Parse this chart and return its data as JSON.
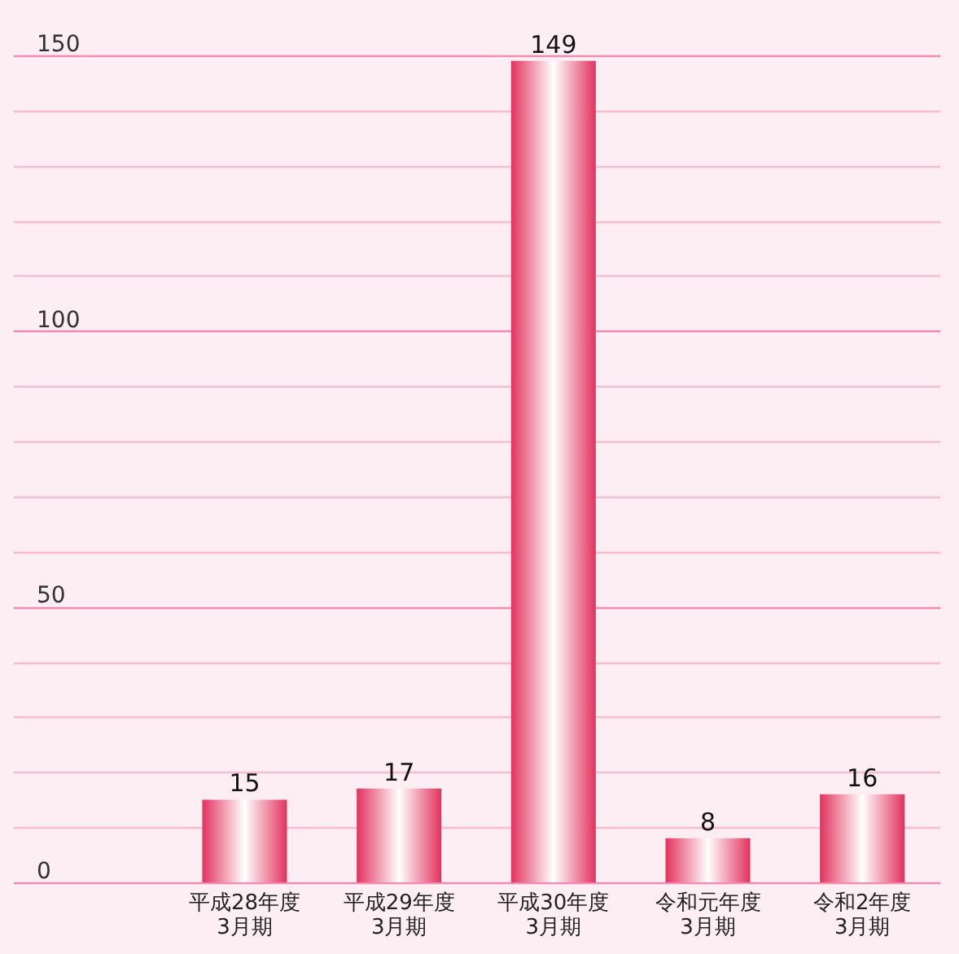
{
  "chart_data": {
    "type": "bar",
    "categories": [
      "平成28年度\n3月期",
      "平成29年度\n3月期",
      "平成30年度\n3月期",
      "令和元年度\n3月期",
      "令和2年度\n3月期"
    ],
    "values": [
      15,
      17,
      149,
      8,
      16
    ],
    "color": "#e2325e",
    "ylim": [
      0,
      150
    ],
    "yticks": [
      0,
      {
        "value": 10,
        "label": null
      },
      {
        "value": 20,
        "label": null
      },
      {
        "value": 30,
        "label": null
      },
      {
        "value": 40,
        "label": null
      },
      50,
      {
        "value": 60,
        "label": null
      },
      {
        "value": 70,
        "label": null
      },
      {
        "value": 80,
        "label": null
      },
      {
        "value": 90,
        "label": null
      },
      100,
      {
        "value": 110,
        "label": null
      },
      {
        "value": 120,
        "label": null
      },
      {
        "value": 130,
        "label": null
      },
      {
        "value": 140,
        "label": null
      },
      150
    ],
    "grid": true,
    "data_labels": true
  }
}
